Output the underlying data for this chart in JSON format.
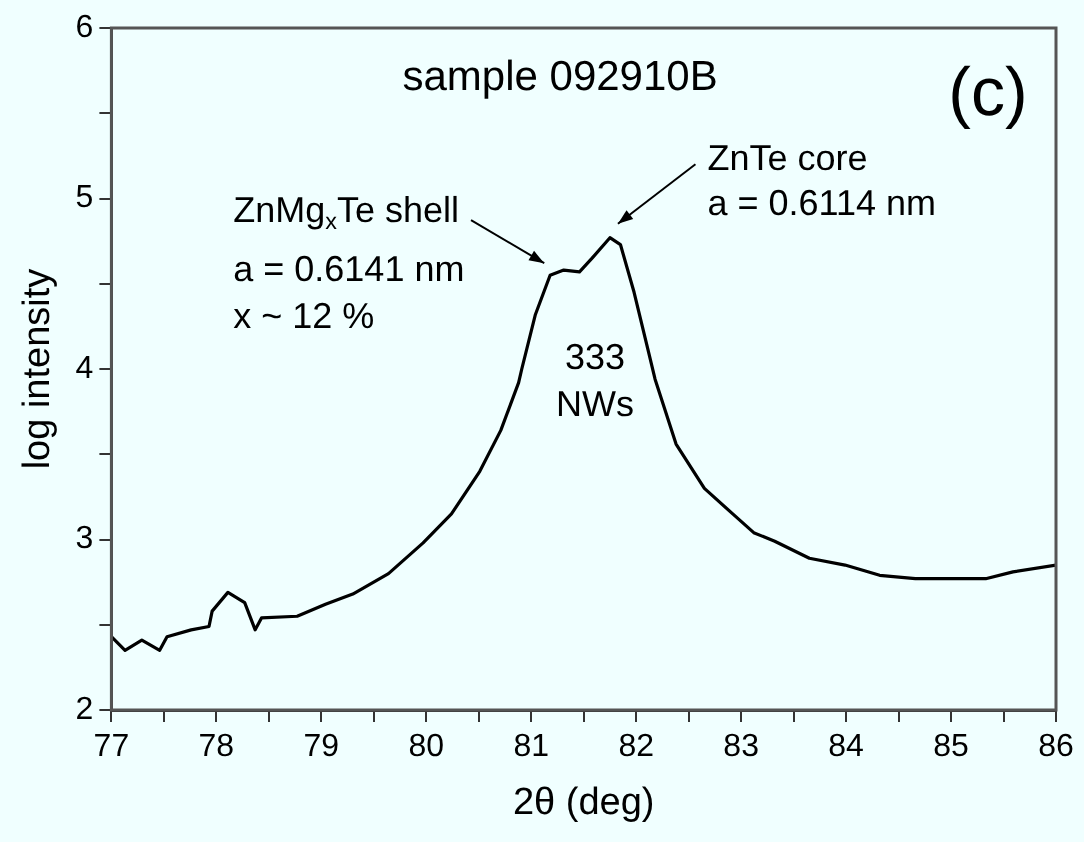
{
  "chart_data": {
    "type": "line",
    "title": "sample 092910B",
    "xlabel": "2θ (deg)",
    "ylabel": "log intensity",
    "color": "#000000",
    "x": [
      77,
      77.13,
      77.29,
      77.46,
      77.53,
      77.76,
      77.93,
      77.96,
      78.11,
      78.27,
      78.37,
      78.43,
      78.77,
      79.04,
      79.3,
      79.64,
      79.97,
      80.24,
      80.51,
      80.71,
      80.88,
      80.91,
      81.04,
      81.18,
      81.31,
      81.46,
      81.58,
      81.75,
      81.85,
      81.98,
      82.11,
      82.18,
      82.38,
      82.65,
      82.92,
      83.12,
      83.32,
      83.65,
      83.99,
      84.32,
      84.66,
      84.99,
      85.33,
      85.59,
      86
    ],
    "values": [
      2.43,
      2.35,
      2.41,
      2.35,
      2.43,
      2.47,
      2.49,
      2.58,
      2.69,
      2.63,
      2.47,
      2.54,
      2.55,
      2.62,
      2.68,
      2.8,
      2.98,
      3.15,
      3.4,
      3.64,
      3.92,
      4.0,
      4.32,
      4.55,
      4.58,
      4.57,
      4.65,
      4.77,
      4.73,
      4.45,
      4.12,
      3.94,
      3.56,
      3.3,
      3.15,
      3.04,
      2.99,
      2.89,
      2.85,
      2.79,
      2.77,
      2.77,
      2.77,
      2.81,
      2.85
    ],
    "xlim": [
      77,
      86
    ],
    "xticks": [
      77,
      78,
      79,
      80,
      81,
      82,
      83,
      84,
      85,
      86
    ],
    "ylim": [
      2,
      6
    ],
    "yticks": [
      2,
      3,
      4,
      5,
      6
    ],
    "grid": false,
    "legend": false,
    "marker": "none",
    "line_style": "solid",
    "annotations": [
      {
        "text": "ZnMg$_{x}$Te shell",
        "x": 81.2,
        "y": 4.55
      },
      {
        "text": "ZnTe core",
        "x": 81.75,
        "y": 4.77
      },
      "a = 0.6141 nm",
      "x ~ 12 %",
      "a = 0.6114 nm",
      "333",
      "NWs",
      "(c)"
    ]
  }
}
